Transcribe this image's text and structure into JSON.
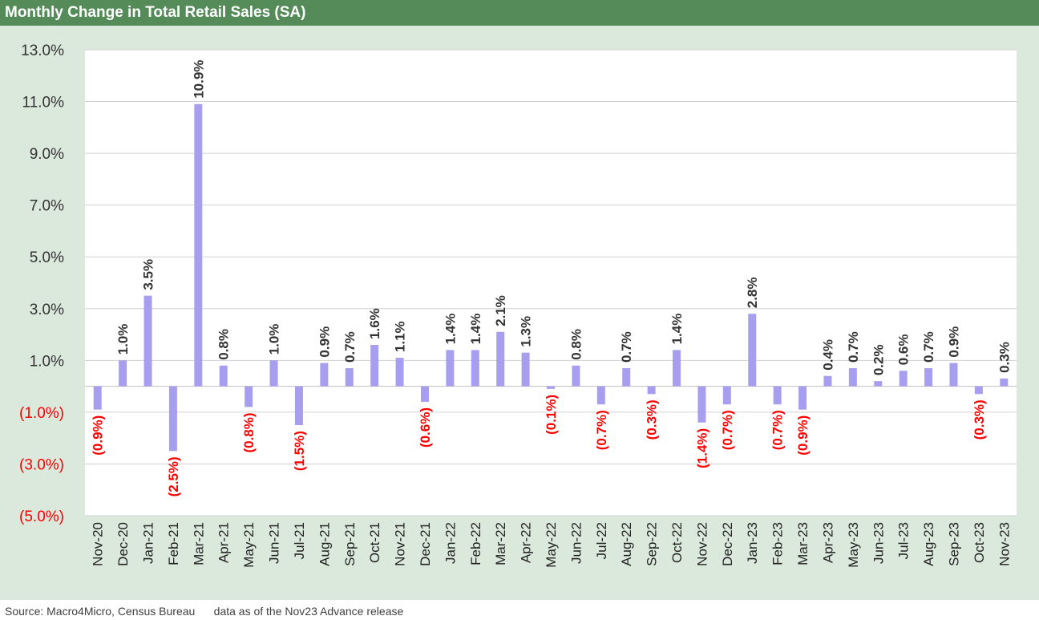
{
  "title": "Monthly Change in Total Retail Sales (SA)",
  "source": "Source: Macro4Micro, Census Bureau      data as of the Nov23 Advance release",
  "colors": {
    "header": "#548b59",
    "panel": "#dbe8dc",
    "bar": "#a79ef0",
    "positive_label": "#333333",
    "negative_label": "#ff0000"
  },
  "chart_data": {
    "type": "bar",
    "ylim": [
      -5.0,
      13.0
    ],
    "yticks": [
      {
        "value": 13,
        "label": "13.0%"
      },
      {
        "value": 11,
        "label": "11.0%"
      },
      {
        "value": 9,
        "label": "9.0%"
      },
      {
        "value": 7,
        "label": "7.0%"
      },
      {
        "value": 5,
        "label": "5.0%"
      },
      {
        "value": 3,
        "label": "3.0%"
      },
      {
        "value": 1,
        "label": "1.0%"
      },
      {
        "value": -1,
        "label": "(1.0%)"
      },
      {
        "value": -3,
        "label": "(3.0%)"
      },
      {
        "value": -5,
        "label": "(5.0%)"
      }
    ],
    "grid": true,
    "categories": [
      "Nov-20",
      "Dec-20",
      "Jan-21",
      "Feb-21",
      "Mar-21",
      "Apr-21",
      "May-21",
      "Jun-21",
      "Jul-21",
      "Aug-21",
      "Sep-21",
      "Oct-21",
      "Nov-21",
      "Dec-21",
      "Jan-22",
      "Feb-22",
      "Mar-22",
      "Apr-22",
      "May-22",
      "Jun-22",
      "Jul-22",
      "Aug-22",
      "Sep-22",
      "Oct-22",
      "Nov-22",
      "Dec-22",
      "Jan-23",
      "Feb-23",
      "Mar-23",
      "Apr-23",
      "May-23",
      "Jun-23",
      "Jul-23",
      "Aug-23",
      "Sep-23",
      "Oct-23",
      "Nov-23"
    ],
    "values": [
      -0.9,
      1.0,
      3.5,
      -2.5,
      10.9,
      0.8,
      -0.8,
      1.0,
      -1.5,
      0.9,
      0.7,
      1.6,
      1.1,
      -0.6,
      1.4,
      1.4,
      2.1,
      1.3,
      -0.1,
      0.8,
      -0.7,
      0.7,
      -0.3,
      1.4,
      -1.4,
      -0.7,
      2.8,
      -0.7,
      -0.9,
      0.4,
      0.7,
      0.2,
      0.6,
      0.7,
      0.9,
      -0.3,
      0.3
    ],
    "labels": [
      "(0.9%)",
      "1.0%",
      "3.5%",
      "(2.5%)",
      "10.9%",
      "0.8%",
      "(0.8%)",
      "1.0%",
      "(1.5%)",
      "0.9%",
      "0.7%",
      "1.6%",
      "1.1%",
      "(0.6%)",
      "1.4%",
      "1.4%",
      "2.1%",
      "1.3%",
      "(0.1%)",
      "0.8%",
      "(0.7%)",
      "0.7%",
      "(0.3%)",
      "1.4%",
      "(1.4%)",
      "(0.7%)",
      "2.8%",
      "(0.7%)",
      "(0.9%)",
      "0.4%",
      "0.7%",
      "0.2%",
      "0.6%",
      "0.7%",
      "0.9%",
      "(0.3%)",
      "0.3%"
    ]
  }
}
